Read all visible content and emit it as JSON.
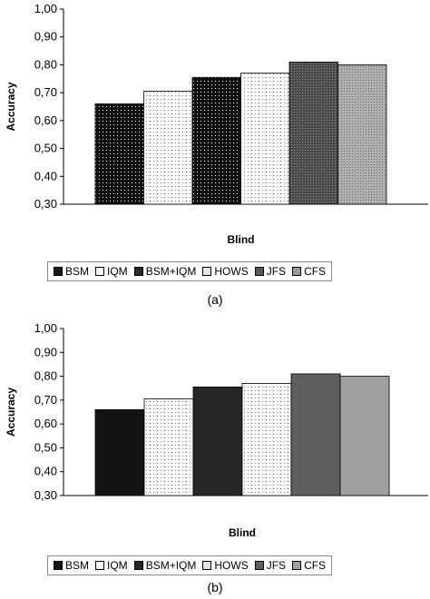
{
  "chart_data": [
    {
      "type": "bar",
      "panel_label": "(a)",
      "xlabel": "Blind",
      "ylabel": "Accuracy",
      "ylim": [
        0.3,
        1.0
      ],
      "yticks": [
        "0,30",
        "0,40",
        "0,50",
        "0,60",
        "0,70",
        "0,80",
        "0,90",
        "1,00"
      ],
      "grid": false,
      "legend_position": "bottom",
      "series": [
        {
          "name": "BSM",
          "value": 0.66,
          "color": "#1a1a1a",
          "pattern": "dots-dark"
        },
        {
          "name": "IQM",
          "value": 0.705,
          "color": "#f5f5f5",
          "pattern": "dots-light"
        },
        {
          "name": "BSM+IQM",
          "value": 0.755,
          "color": "#2a2a2a",
          "pattern": "dots-dark"
        },
        {
          "name": "HOWS",
          "value": 0.77,
          "color": "#e6e6e6",
          "pattern": "dots-light"
        },
        {
          "name": "JFS",
          "value": 0.81,
          "color": "#5a5a5a",
          "pattern": "hatch"
        },
        {
          "name": "CFS",
          "value": 0.8,
          "color": "#9a9a9a",
          "pattern": "dots-mid"
        }
      ]
    },
    {
      "type": "bar",
      "panel_label": "(b)",
      "xlabel": "Blind",
      "ylabel": "Accuracy",
      "ylim": [
        0.3,
        1.0
      ],
      "yticks": [
        "0,30",
        "0,40",
        "0,50",
        "0,60",
        "0,70",
        "0,80",
        "0,90",
        "1,00"
      ],
      "grid": false,
      "legend_position": "bottom",
      "series": [
        {
          "name": "BSM",
          "value": 0.66,
          "color": "#141414",
          "pattern": "solid"
        },
        {
          "name": "IQM",
          "value": 0.705,
          "color": "#f8f8f8",
          "pattern": "dots-light"
        },
        {
          "name": "BSM+IQM",
          "value": 0.755,
          "color": "#262626",
          "pattern": "solid"
        },
        {
          "name": "HOWS",
          "value": 0.77,
          "color": "#e2e2e2",
          "pattern": "dots-light"
        },
        {
          "name": "JFS",
          "value": 0.81,
          "color": "#5e5e5e",
          "pattern": "solid"
        },
        {
          "name": "CFS",
          "value": 0.8,
          "color": "#a0a0a0",
          "pattern": "solid"
        }
      ]
    }
  ]
}
